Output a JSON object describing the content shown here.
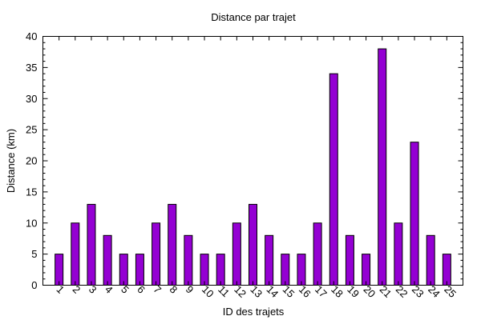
{
  "chart_data": {
    "type": "bar",
    "title": "Distance par trajet",
    "xlabel": "ID des trajets",
    "ylabel": "Distance (km)",
    "categories": [
      "1",
      "2",
      "3",
      "4",
      "5",
      "6",
      "7",
      "8",
      "9",
      "10",
      "11",
      "12",
      "13",
      "14",
      "15",
      "16",
      "17",
      "18",
      "19",
      "20",
      "21",
      "22",
      "23",
      "24",
      "25"
    ],
    "values": [
      5,
      10,
      13,
      8,
      5,
      5,
      10,
      13,
      8,
      5,
      5,
      10,
      13,
      8,
      5,
      5,
      10,
      34,
      8,
      5,
      38,
      10,
      23,
      8,
      5
    ],
    "ylim": [
      0,
      40
    ],
    "yticks": [
      0,
      5,
      10,
      15,
      20,
      25,
      30,
      35,
      40
    ],
    "grid": false,
    "legend": "none",
    "bar_color": "#9400d3"
  }
}
